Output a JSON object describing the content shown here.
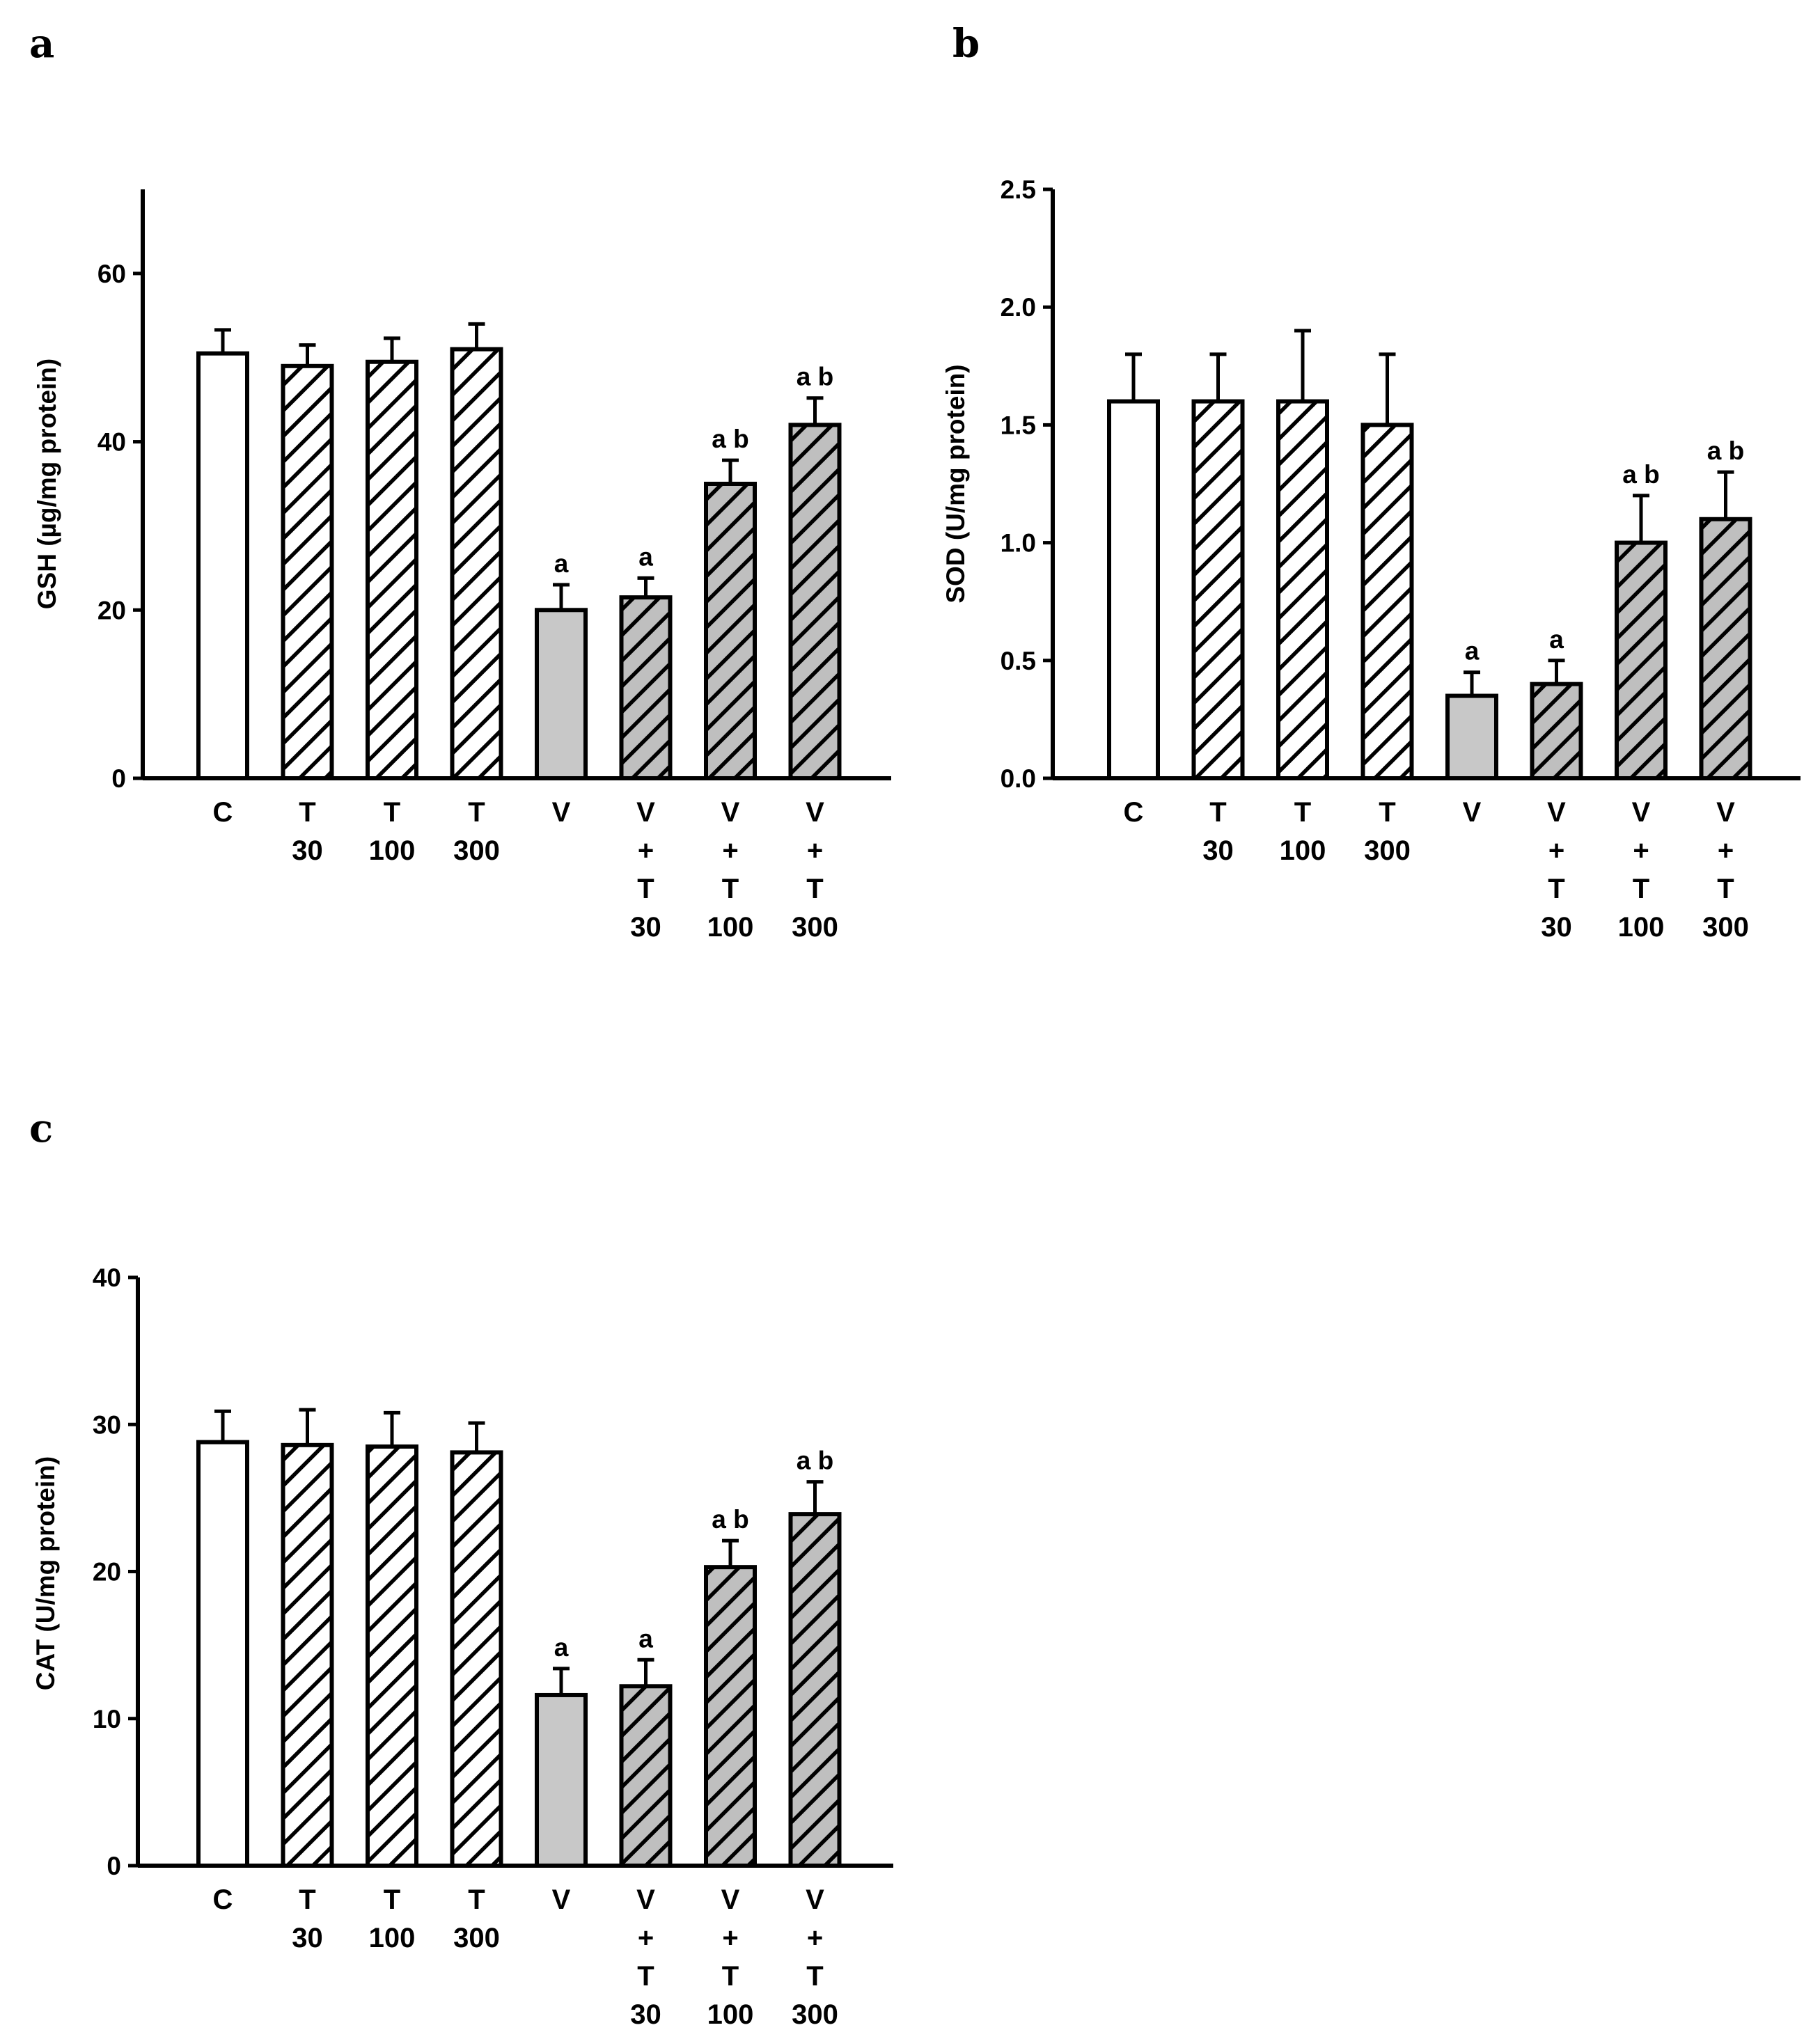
{
  "colors": {
    "control": "#ffffff",
    "vehicle": "#c8c8c8",
    "hatch_light_bg": "#ffffff",
    "hatch_grey_bg": "#bfbfbf",
    "ink": "#000000"
  },
  "chart_data": [
    {
      "panel": "a",
      "type": "bar",
      "ylabel": "GSH (µg/mg protein)",
      "ylim": [
        0,
        70
      ],
      "yticks": [
        0,
        20,
        40,
        60
      ],
      "ytick_labels": [
        "0",
        "20",
        "40",
        "60"
      ],
      "categories": [
        [
          "C"
        ],
        [
          "T",
          "30"
        ],
        [
          "T",
          "100"
        ],
        [
          "T",
          "300"
        ],
        [
          "V"
        ],
        [
          "V",
          "+",
          "T",
          "30"
        ],
        [
          "V",
          "+",
          "T",
          "100"
        ],
        [
          "V",
          "+",
          "T",
          "300"
        ]
      ],
      "values": [
        50.5,
        49,
        49.5,
        51,
        20,
        21.5,
        35,
        42
      ],
      "errors": [
        2.8,
        2.5,
        2.8,
        3.0,
        3.0,
        2.3,
        2.8,
        3.2
      ],
      "fills": [
        "white",
        "hatch-white",
        "hatch-white",
        "hatch-white",
        "grey",
        "hatch-grey",
        "hatch-grey",
        "hatch-grey"
      ],
      "annotations": [
        "",
        "",
        "",
        "",
        "a",
        "a",
        "a b",
        "a b"
      ]
    },
    {
      "panel": "b",
      "type": "bar",
      "ylabel": "SOD (U/mg protein)",
      "ylim": [
        0,
        2.5
      ],
      "yticks": [
        0,
        0.5,
        1.0,
        1.5,
        2.0,
        2.5
      ],
      "ytick_labels": [
        "0.0",
        "0.5",
        "1.0",
        "1.5",
        "2.0",
        "2.5"
      ],
      "categories": [
        [
          "C"
        ],
        [
          "T",
          "30"
        ],
        [
          "T",
          "100"
        ],
        [
          "T",
          "300"
        ],
        [
          "V"
        ],
        [
          "V",
          "+",
          "T",
          "30"
        ],
        [
          "V",
          "+",
          "T",
          "100"
        ],
        [
          "V",
          "+",
          "T",
          "300"
        ]
      ],
      "values": [
        1.6,
        1.6,
        1.6,
        1.5,
        0.35,
        0.4,
        1.0,
        1.1
      ],
      "errors": [
        0.2,
        0.2,
        0.3,
        0.3,
        0.1,
        0.1,
        0.2,
        0.2
      ],
      "fills": [
        "white",
        "hatch-white",
        "hatch-white",
        "hatch-white",
        "grey",
        "hatch-grey",
        "hatch-grey",
        "hatch-grey"
      ],
      "annotations": [
        "",
        "",
        "",
        "",
        "a",
        "a",
        "a b",
        "a b"
      ]
    },
    {
      "panel": "c",
      "type": "bar",
      "ylabel": "CAT (U/mg protein)",
      "ylim": [
        0,
        40
      ],
      "yticks": [
        0,
        10,
        20,
        30,
        40
      ],
      "ytick_labels": [
        "0",
        "10",
        "20",
        "30",
        "40"
      ],
      "categories": [
        [
          "C"
        ],
        [
          "T",
          "30"
        ],
        [
          "T",
          "100"
        ],
        [
          "T",
          "300"
        ],
        [
          "V"
        ],
        [
          "V",
          "+",
          "T",
          "30"
        ],
        [
          "V",
          "+",
          "T",
          "100"
        ],
        [
          "V",
          "+",
          "T",
          "300"
        ]
      ],
      "values": [
        28.8,
        28.6,
        28.5,
        28.1,
        11.6,
        12.2,
        20.3,
        23.9
      ],
      "errors": [
        2.1,
        2.4,
        2.3,
        2.0,
        1.8,
        1.8,
        1.8,
        2.2
      ],
      "fills": [
        "white",
        "hatch-white",
        "hatch-white",
        "hatch-white",
        "grey",
        "hatch-grey",
        "hatch-grey",
        "hatch-grey"
      ],
      "annotations": [
        "",
        "",
        "",
        "",
        "a",
        "a",
        "a b",
        "a b"
      ]
    }
  ]
}
